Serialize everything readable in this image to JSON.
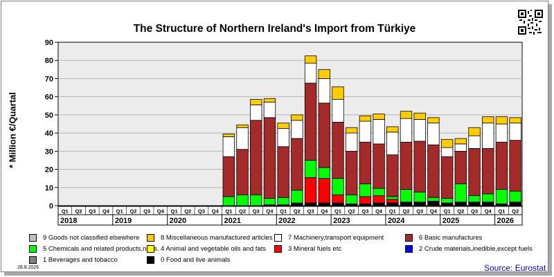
{
  "chart_data": {
    "type": "bar",
    "stacked": true,
    "title": "The Structure of Northern Ireland's Import from Türkiye",
    "ylabel": "* Million €/Quartal",
    "ylim": [
      0,
      90
    ],
    "yticks": [
      0,
      10,
      20,
      30,
      40,
      50,
      60,
      70,
      80,
      90
    ],
    "grid": true,
    "legend_position": "bottom",
    "years": [
      "2018",
      "2019",
      "2020",
      "2021",
      "2022",
      "2023",
      "2024",
      "2025",
      "2026"
    ],
    "quarter_labels": [
      "Q1",
      "Q2",
      "Q3",
      "Q4"
    ],
    "categories": [
      "2018 Q1",
      "2018 Q2",
      "2018 Q3",
      "2018 Q4",
      "2019 Q1",
      "2019 Q2",
      "2019 Q3",
      "2019 Q4",
      "2020 Q1",
      "2020 Q2",
      "2020 Q3",
      "2020 Q4",
      "2021 Q1",
      "2021 Q2",
      "2021 Q3",
      "2021 Q4",
      "2022 Q1",
      "2022 Q2",
      "2022 Q3",
      "2022 Q4",
      "2023 Q1",
      "2023 Q2",
      "2023 Q3",
      "2023 Q4",
      "2024 Q1",
      "2024 Q2",
      "2024 Q3",
      "2024 Q4",
      "2025 Q1",
      "2025 Q2",
      "2025 Q3",
      "2025 Q4",
      "2026 Q1",
      "2026 Q2"
    ],
    "series": [
      {
        "name": "0 Food and live animals",
        "color": "#000000",
        "values": [
          0,
          0,
          0,
          0,
          0,
          0,
          0,
          0,
          0,
          0,
          0,
          0,
          0,
          0,
          0,
          0.5,
          0.5,
          1.5,
          1.5,
          1.5,
          1.5,
          1,
          1,
          1.5,
          1.5,
          2,
          2,
          2.5,
          1.5,
          2,
          2,
          2,
          1,
          2
        ]
      },
      {
        "name": "1 Beverages and tobacco",
        "color": "#808080",
        "values": [
          0,
          0,
          0,
          0,
          0,
          0,
          0,
          0,
          0,
          0,
          0,
          0,
          0,
          0,
          0,
          0,
          0,
          0,
          0,
          0,
          0,
          0,
          0,
          0,
          0,
          0,
          0,
          0,
          0,
          0,
          0,
          0,
          0,
          0
        ]
      },
      {
        "name": "2 Crude materials,inedible,except fuels",
        "color": "#0000ff",
        "values": [
          0,
          0,
          0,
          0,
          0,
          0,
          0,
          0,
          0,
          0,
          0,
          0,
          0,
          0,
          0,
          0,
          0,
          0,
          0,
          0,
          0,
          0,
          0,
          0,
          0,
          0,
          0,
          0,
          0,
          0,
          0,
          0,
          0,
          0
        ]
      },
      {
        "name": "3 Mineral fuels etc",
        "color": "#ff0000",
        "values": [
          0,
          0,
          0,
          0,
          0,
          0,
          0,
          0,
          0,
          0,
          0,
          0,
          0,
          0,
          0,
          0,
          0,
          0,
          14,
          13.5,
          4.5,
          0,
          4,
          4,
          2,
          0,
          0,
          0,
          0,
          0,
          0,
          0,
          0,
          0
        ]
      },
      {
        "name": "4 Animal and vegetable oils and fats",
        "color": "#ffff00",
        "values": [
          0,
          0,
          0,
          0,
          0,
          0,
          0,
          0,
          0,
          0,
          0,
          0,
          0,
          0,
          0,
          0,
          0,
          0,
          0,
          0,
          0,
          0,
          0,
          0,
          0,
          0,
          0,
          0,
          0,
          0,
          0,
          0,
          0,
          0
        ]
      },
      {
        "name": "5 Chemicals and related products,n.e.s.",
        "color": "#00ff00",
        "values": [
          0,
          0,
          0,
          0,
          0,
          0,
          0,
          0,
          0,
          0,
          0,
          0,
          5,
          6,
          6,
          3.5,
          4,
          7,
          9.5,
          6,
          9,
          5,
          7,
          4,
          1.5,
          7,
          5.5,
          2,
          2.5,
          10,
          3.5,
          4.5,
          8,
          6
        ]
      },
      {
        "name": "6 Basic manufactures",
        "color": "#a52a2a",
        "values": [
          0,
          0,
          0,
          0,
          0,
          0,
          0,
          0,
          0,
          0,
          0,
          0,
          22,
          25,
          41,
          44.5,
          28,
          28.5,
          42.5,
          35.5,
          31,
          24,
          23,
          24.5,
          23,
          26,
          28,
          29,
          23,
          18,
          26,
          25,
          26,
          28
        ]
      },
      {
        "name": "7 Machinery,transport equipment",
        "color": "#ffffff",
        "values": [
          0,
          0,
          0,
          0,
          0,
          0,
          0,
          0,
          0,
          0,
          0,
          0,
          11,
          12,
          8.5,
          8.5,
          10,
          10,
          11,
          13.5,
          12.5,
          10,
          11.5,
          13.5,
          12.5,
          13,
          12,
          12,
          5,
          4,
          7,
          14,
          10,
          9.5
        ]
      },
      {
        "name": "8 Miscellaneous manufactured articles",
        "color": "#ffcc00",
        "values": [
          0,
          0,
          0,
          0,
          0,
          0,
          0,
          0,
          0,
          0,
          0,
          0,
          1.5,
          1.5,
          3,
          2,
          3,
          3,
          4,
          5,
          7,
          3,
          3,
          3,
          3,
          4,
          3.5,
          3,
          4.5,
          3,
          4.5,
          3.5,
          4,
          3
        ]
      },
      {
        "name": "9 Goods not classified elsewhere",
        "color": "#c0c0c0",
        "values": [
          0,
          0,
          0,
          0,
          0,
          0,
          0,
          0,
          0,
          0,
          0,
          0,
          0,
          0,
          0,
          0,
          0,
          0,
          0,
          0,
          0,
          0,
          0,
          0,
          0,
          0,
          0,
          0,
          0,
          0,
          0,
          0,
          0,
          0
        ]
      }
    ],
    "legend_order": [
      9,
      8,
      7,
      6,
      5,
      4,
      3,
      2,
      1,
      0
    ]
  },
  "footer": {
    "date": "28.8.2026",
    "source": "Source: Eurostat"
  },
  "icons": {
    "qr": "qr-code-icon"
  }
}
